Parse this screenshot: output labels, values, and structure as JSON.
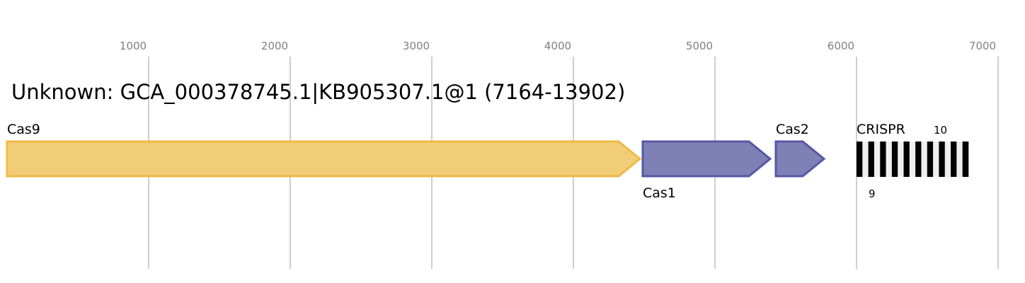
{
  "title": "Unknown: GCA_000378745.1|KB905307.1@1 (7164-13902)",
  "axis": {
    "ticks": [
      1000,
      2000,
      3000,
      4000,
      5000,
      6000,
      7000
    ],
    "range": [
      0,
      7000
    ]
  },
  "genes": [
    {
      "name": "Cas9",
      "start": 0,
      "end": 4470,
      "strand": "+",
      "fill": "#f2cc75",
      "stroke": "#f0b944",
      "label_pos": "above"
    },
    {
      "name": "Cas1",
      "start": 4470,
      "end": 5400,
      "strand": "+",
      "fill": "#7b7db5",
      "stroke": "#5557a5",
      "label_pos": "below"
    },
    {
      "name": "Cas2",
      "start": 5430,
      "end": 5770,
      "strand": "+",
      "fill": "#7b7db5",
      "stroke": "#5557a5",
      "label_pos": "above"
    }
  ],
  "crispr": {
    "label": "CRISPR",
    "start": 6000,
    "end": 6740,
    "repeats": 10,
    "spacers": 9,
    "repeats_label": "10",
    "spacers_label": "9"
  }
}
